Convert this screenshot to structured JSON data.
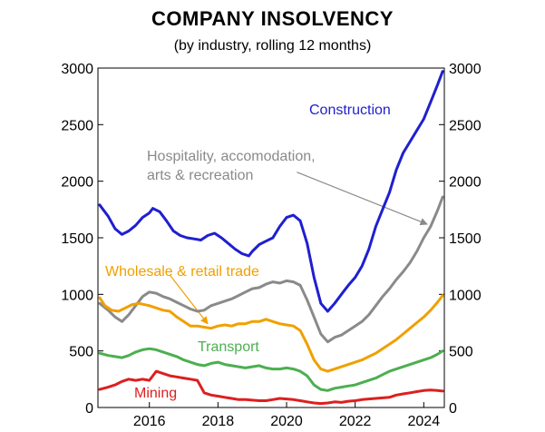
{
  "chart_data": {
    "type": "line",
    "title": "COMPANY INSOLVENCY",
    "subtitle": "(by industry, rolling 12 months)",
    "xlabel": "",
    "ylabel": "",
    "xlim": [
      2014.5,
      2024.6
    ],
    "ylim": [
      0,
      3000
    ],
    "x_ticks": [
      2016,
      2018,
      2020,
      2022,
      2024
    ],
    "x_tick_labels": [
      "2016",
      "2018",
      "2020",
      "2022",
      "2024"
    ],
    "y_ticks": [
      0,
      500,
      1000,
      1500,
      2000,
      2500,
      3000
    ],
    "y_tick_labels_left": [
      "0",
      "500",
      "1000",
      "1500",
      "2000",
      "2500",
      "3000"
    ],
    "y_tick_labels_right": [
      "0",
      "500",
      "1000",
      "1500",
      "2000",
      "2500",
      "3000"
    ],
    "grid": false,
    "series": [
      {
        "name": "Construction",
        "label": "Construction",
        "color": "#1f1fd0",
        "points": [
          [
            2014.55,
            1790
          ],
          [
            2014.8,
            1690
          ],
          [
            2015.0,
            1580
          ],
          [
            2015.2,
            1530
          ],
          [
            2015.4,
            1560
          ],
          [
            2015.6,
            1610
          ],
          [
            2015.8,
            1680
          ],
          [
            2016.0,
            1720
          ],
          [
            2016.1,
            1760
          ],
          [
            2016.3,
            1730
          ],
          [
            2016.5,
            1650
          ],
          [
            2016.7,
            1560
          ],
          [
            2016.9,
            1520
          ],
          [
            2017.1,
            1500
          ],
          [
            2017.3,
            1490
          ],
          [
            2017.5,
            1480
          ],
          [
            2017.7,
            1520
          ],
          [
            2017.9,
            1540
          ],
          [
            2018.1,
            1500
          ],
          [
            2018.3,
            1450
          ],
          [
            2018.5,
            1400
          ],
          [
            2018.7,
            1360
          ],
          [
            2018.9,
            1340
          ],
          [
            2019.0,
            1380
          ],
          [
            2019.2,
            1440
          ],
          [
            2019.4,
            1470
          ],
          [
            2019.6,
            1500
          ],
          [
            2019.8,
            1600
          ],
          [
            2020.0,
            1680
          ],
          [
            2020.2,
            1700
          ],
          [
            2020.4,
            1650
          ],
          [
            2020.6,
            1450
          ],
          [
            2020.8,
            1150
          ],
          [
            2021.0,
            920
          ],
          [
            2021.2,
            850
          ],
          [
            2021.4,
            920
          ],
          [
            2021.6,
            1000
          ],
          [
            2021.8,
            1080
          ],
          [
            2022.0,
            1150
          ],
          [
            2022.2,
            1250
          ],
          [
            2022.4,
            1400
          ],
          [
            2022.6,
            1600
          ],
          [
            2022.8,
            1750
          ],
          [
            2023.0,
            1900
          ],
          [
            2023.2,
            2100
          ],
          [
            2023.4,
            2250
          ],
          [
            2023.6,
            2350
          ],
          [
            2023.8,
            2450
          ],
          [
            2024.0,
            2550
          ],
          [
            2024.2,
            2700
          ],
          [
            2024.4,
            2850
          ],
          [
            2024.55,
            2970
          ]
        ]
      },
      {
        "name": "Hospitality, accomodation, arts & recreation",
        "label_line1": "Hospitality, accomodation,",
        "label_line2": "arts & recreation",
        "color": "#8a8a8a",
        "points": [
          [
            2014.55,
            920
          ],
          [
            2014.8,
            860
          ],
          [
            2015.0,
            800
          ],
          [
            2015.2,
            760
          ],
          [
            2015.4,
            820
          ],
          [
            2015.6,
            900
          ],
          [
            2015.8,
            980
          ],
          [
            2016.0,
            1020
          ],
          [
            2016.2,
            1010
          ],
          [
            2016.4,
            980
          ],
          [
            2016.6,
            960
          ],
          [
            2016.8,
            930
          ],
          [
            2017.0,
            900
          ],
          [
            2017.2,
            870
          ],
          [
            2017.4,
            850
          ],
          [
            2017.6,
            860
          ],
          [
            2017.8,
            900
          ],
          [
            2018.0,
            920
          ],
          [
            2018.2,
            940
          ],
          [
            2018.4,
            960
          ],
          [
            2018.6,
            990
          ],
          [
            2018.8,
            1020
          ],
          [
            2019.0,
            1050
          ],
          [
            2019.2,
            1060
          ],
          [
            2019.4,
            1090
          ],
          [
            2019.6,
            1110
          ],
          [
            2019.8,
            1100
          ],
          [
            2020.0,
            1120
          ],
          [
            2020.2,
            1110
          ],
          [
            2020.4,
            1080
          ],
          [
            2020.6,
            950
          ],
          [
            2020.8,
            800
          ],
          [
            2021.0,
            650
          ],
          [
            2021.2,
            580
          ],
          [
            2021.4,
            620
          ],
          [
            2021.6,
            640
          ],
          [
            2021.8,
            680
          ],
          [
            2022.0,
            720
          ],
          [
            2022.2,
            760
          ],
          [
            2022.4,
            820
          ],
          [
            2022.6,
            900
          ],
          [
            2022.8,
            980
          ],
          [
            2023.0,
            1050
          ],
          [
            2023.2,
            1130
          ],
          [
            2023.4,
            1200
          ],
          [
            2023.6,
            1280
          ],
          [
            2023.8,
            1380
          ],
          [
            2024.0,
            1500
          ],
          [
            2024.2,
            1600
          ],
          [
            2024.4,
            1740
          ],
          [
            2024.55,
            1860
          ]
        ]
      },
      {
        "name": "Wholesale & retail trade",
        "label": "Wholesale & retail trade",
        "color": "#f0a000",
        "points": [
          [
            2014.55,
            970
          ],
          [
            2014.7,
            900
          ],
          [
            2014.9,
            860
          ],
          [
            2015.1,
            850
          ],
          [
            2015.3,
            880
          ],
          [
            2015.5,
            910
          ],
          [
            2015.7,
            920
          ],
          [
            2016.0,
            900
          ],
          [
            2016.2,
            880
          ],
          [
            2016.4,
            860
          ],
          [
            2016.6,
            850
          ],
          [
            2016.8,
            800
          ],
          [
            2017.0,
            760
          ],
          [
            2017.2,
            720
          ],
          [
            2017.4,
            720
          ],
          [
            2017.6,
            710
          ],
          [
            2017.8,
            700
          ],
          [
            2018.0,
            720
          ],
          [
            2018.2,
            730
          ],
          [
            2018.4,
            720
          ],
          [
            2018.6,
            740
          ],
          [
            2018.8,
            740
          ],
          [
            2019.0,
            760
          ],
          [
            2019.2,
            760
          ],
          [
            2019.4,
            780
          ],
          [
            2019.6,
            760
          ],
          [
            2019.8,
            740
          ],
          [
            2020.0,
            730
          ],
          [
            2020.2,
            720
          ],
          [
            2020.4,
            680
          ],
          [
            2020.6,
            560
          ],
          [
            2020.8,
            420
          ],
          [
            2021.0,
            340
          ],
          [
            2021.2,
            320
          ],
          [
            2021.4,
            340
          ],
          [
            2021.6,
            360
          ],
          [
            2021.8,
            380
          ],
          [
            2022.0,
            400
          ],
          [
            2022.2,
            420
          ],
          [
            2022.4,
            450
          ],
          [
            2022.6,
            480
          ],
          [
            2022.8,
            520
          ],
          [
            2023.0,
            560
          ],
          [
            2023.2,
            600
          ],
          [
            2023.4,
            650
          ],
          [
            2023.6,
            700
          ],
          [
            2023.8,
            750
          ],
          [
            2024.0,
            800
          ],
          [
            2024.2,
            860
          ],
          [
            2024.4,
            930
          ],
          [
            2024.55,
            990
          ]
        ]
      },
      {
        "name": "Transport",
        "label": "Transport",
        "color": "#4caf50",
        "points": [
          [
            2014.55,
            480
          ],
          [
            2014.8,
            460
          ],
          [
            2015.0,
            450
          ],
          [
            2015.2,
            440
          ],
          [
            2015.4,
            460
          ],
          [
            2015.6,
            490
          ],
          [
            2015.8,
            510
          ],
          [
            2016.0,
            520
          ],
          [
            2016.2,
            510
          ],
          [
            2016.4,
            490
          ],
          [
            2016.6,
            470
          ],
          [
            2016.8,
            450
          ],
          [
            2017.0,
            420
          ],
          [
            2017.2,
            400
          ],
          [
            2017.4,
            380
          ],
          [
            2017.6,
            370
          ],
          [
            2017.8,
            390
          ],
          [
            2018.0,
            400
          ],
          [
            2018.2,
            380
          ],
          [
            2018.4,
            370
          ],
          [
            2018.6,
            360
          ],
          [
            2018.8,
            350
          ],
          [
            2019.0,
            360
          ],
          [
            2019.2,
            370
          ],
          [
            2019.4,
            350
          ],
          [
            2019.6,
            340
          ],
          [
            2019.8,
            340
          ],
          [
            2020.0,
            350
          ],
          [
            2020.2,
            340
          ],
          [
            2020.4,
            320
          ],
          [
            2020.6,
            280
          ],
          [
            2020.8,
            200
          ],
          [
            2021.0,
            160
          ],
          [
            2021.2,
            150
          ],
          [
            2021.4,
            170
          ],
          [
            2021.6,
            180
          ],
          [
            2021.8,
            190
          ],
          [
            2022.0,
            200
          ],
          [
            2022.2,
            220
          ],
          [
            2022.4,
            240
          ],
          [
            2022.6,
            260
          ],
          [
            2022.8,
            290
          ],
          [
            2023.0,
            320
          ],
          [
            2023.2,
            340
          ],
          [
            2023.4,
            360
          ],
          [
            2023.6,
            380
          ],
          [
            2023.8,
            400
          ],
          [
            2024.0,
            420
          ],
          [
            2024.2,
            440
          ],
          [
            2024.4,
            470
          ],
          [
            2024.55,
            500
          ]
        ]
      },
      {
        "name": "Mining",
        "label": "Mining",
        "color": "#dd1f1f",
        "points": [
          [
            2014.55,
            160
          ],
          [
            2014.8,
            180
          ],
          [
            2015.0,
            200
          ],
          [
            2015.2,
            230
          ],
          [
            2015.4,
            250
          ],
          [
            2015.6,
            240
          ],
          [
            2015.8,
            250
          ],
          [
            2016.0,
            240
          ],
          [
            2016.1,
            280
          ],
          [
            2016.2,
            320
          ],
          [
            2016.4,
            300
          ],
          [
            2016.6,
            280
          ],
          [
            2016.8,
            270
          ],
          [
            2017.0,
            260
          ],
          [
            2017.2,
            250
          ],
          [
            2017.4,
            240
          ],
          [
            2017.6,
            130
          ],
          [
            2017.8,
            110
          ],
          [
            2018.0,
            100
          ],
          [
            2018.2,
            90
          ],
          [
            2018.4,
            80
          ],
          [
            2018.6,
            70
          ],
          [
            2018.8,
            70
          ],
          [
            2019.0,
            65
          ],
          [
            2019.2,
            60
          ],
          [
            2019.4,
            60
          ],
          [
            2019.6,
            70
          ],
          [
            2019.8,
            80
          ],
          [
            2020.0,
            75
          ],
          [
            2020.2,
            70
          ],
          [
            2020.4,
            60
          ],
          [
            2020.6,
            50
          ],
          [
            2020.8,
            40
          ],
          [
            2021.0,
            35
          ],
          [
            2021.2,
            40
          ],
          [
            2021.4,
            50
          ],
          [
            2021.6,
            45
          ],
          [
            2021.8,
            55
          ],
          [
            2022.0,
            60
          ],
          [
            2022.2,
            70
          ],
          [
            2022.4,
            75
          ],
          [
            2022.6,
            80
          ],
          [
            2022.8,
            85
          ],
          [
            2023.0,
            90
          ],
          [
            2023.2,
            110
          ],
          [
            2023.4,
            120
          ],
          [
            2023.6,
            130
          ],
          [
            2023.8,
            140
          ],
          [
            2024.0,
            150
          ],
          [
            2024.2,
            155
          ],
          [
            2024.4,
            150
          ],
          [
            2024.55,
            145
          ]
        ]
      }
    ],
    "annotations": [
      {
        "target": "Hospitality, accomodation, arts & recreation",
        "from_x": 2020.3,
        "from_y": 2080,
        "to_x": 2024.1,
        "to_y": 1620,
        "color": "#8a8a8a"
      },
      {
        "target": "Wholesale & retail trade",
        "from_x": 2016.6,
        "from_y": 1170,
        "to_x": 2017.7,
        "to_y": 740,
        "color": "#f0a000"
      }
    ]
  }
}
